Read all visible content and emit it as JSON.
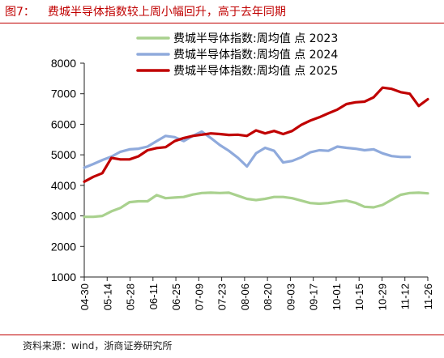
{
  "figure": {
    "number": "图7：",
    "title": "费城半导体指数较上周小幅回升，高于去年同期"
  },
  "source": "资料来源：wind，浙商证券研究所",
  "chart_data": {
    "type": "line",
    "ylim": [
      1000,
      8000
    ],
    "yticks": [
      1000,
      2000,
      3000,
      4000,
      5000,
      6000,
      7000,
      8000
    ],
    "xticks": [
      "04-30",
      "05-14",
      "05-28",
      "06-11",
      "06-25",
      "07-09",
      "07-23",
      "08-06",
      "08-20",
      "09-03",
      "09-17",
      "10-01",
      "10-15",
      "10-29",
      "11-12",
      "11-26"
    ],
    "grid": false,
    "legend_position": "top-right",
    "series": [
      {
        "name": "费城半导体指数:周均值 点 2023",
        "color": "#a9d18e",
        "values": [
          2970,
          2970,
          3000,
          3150,
          3260,
          3450,
          3480,
          3480,
          3680,
          3580,
          3600,
          3620,
          3700,
          3750,
          3760,
          3750,
          3760,
          3660,
          3560,
          3520,
          3560,
          3620,
          3620,
          3580,
          3500,
          3420,
          3400,
          3420,
          3470,
          3500,
          3430,
          3300,
          3280,
          3360,
          3530,
          3690,
          3750,
          3760,
          3740
        ]
      },
      {
        "name": "费城半导体指数:周均值 点 2024",
        "color": "#8faadc",
        "values": [
          4580,
          4700,
          4830,
          4940,
          5100,
          5180,
          5200,
          5270,
          5450,
          5620,
          5580,
          5450,
          5620,
          5760,
          5550,
          5320,
          5130,
          4900,
          4620,
          5050,
          5230,
          5130,
          4750,
          4800,
          4920,
          5080,
          5150,
          5130,
          5270,
          5230,
          5200,
          5150,
          5180,
          5050,
          4960,
          4930,
          4930
        ]
      },
      {
        "name": "费城半导体指数:周均值 点 2025",
        "color": "#c00000",
        "values": [
          4120,
          4280,
          4400,
          4900,
          4850,
          4850,
          4950,
          5150,
          5220,
          5250,
          5450,
          5550,
          5620,
          5660,
          5700,
          5680,
          5650,
          5660,
          5620,
          5800,
          5700,
          5780,
          5680,
          5780,
          5980,
          6120,
          6230,
          6360,
          6480,
          6660,
          6720,
          6740,
          6880,
          7200,
          7160,
          7050,
          7000,
          6600,
          6820
        ]
      }
    ]
  }
}
